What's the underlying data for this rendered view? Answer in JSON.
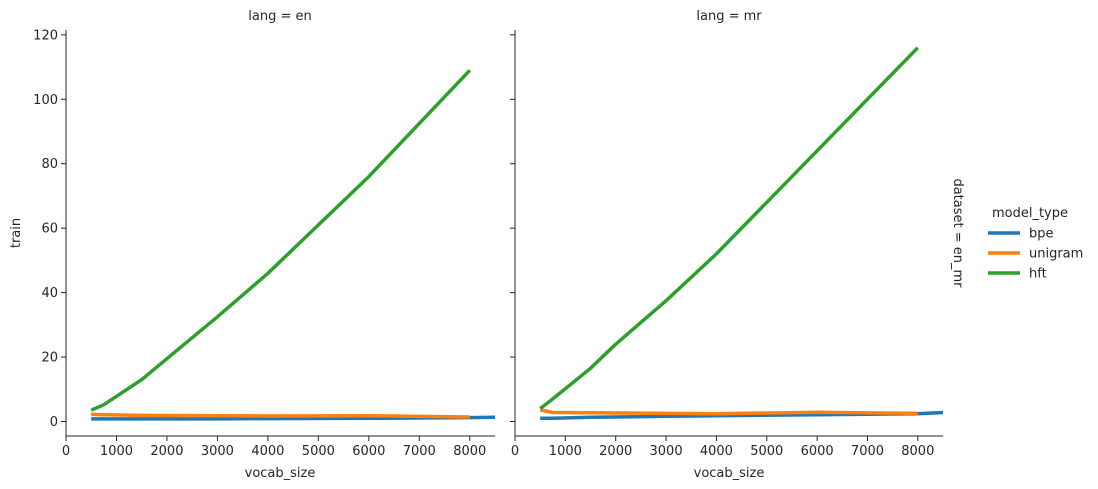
{
  "chart_data": {
    "type": "line",
    "facet_row_label": "dataset = en_mr",
    "legend": {
      "title": "model_type",
      "entries": [
        "bpe",
        "unigram",
        "hft"
      ],
      "placement": "right"
    },
    "colors": {
      "bpe": "#1f77b4",
      "unigram": "#ff7f0e",
      "hft": "#2ca02c"
    },
    "grid": false,
    "xlabel": "vocab_size",
    "ylabel": "train",
    "xlim": [
      0,
      8500
    ],
    "ylim": [
      -4.5,
      121.5
    ],
    "xticks": [
      "0",
      "1000",
      "2000",
      "3000",
      "4000",
      "5000",
      "6000",
      "7000",
      "8000"
    ],
    "yticks": [
      "0",
      "20",
      "40",
      "60",
      "80",
      "100",
      "120"
    ],
    "panels": [
      {
        "title": "lang = en",
        "series": [
          {
            "name": "bpe",
            "x": [
              500,
              750,
              1500,
              3000,
              4000,
              6000,
              8000,
              8500
            ],
            "y": [
              0.8,
              0.8,
              0.8,
              0.8,
              0.9,
              1.0,
              1.2,
              1.3
            ]
          },
          {
            "name": "unigram",
            "x": [
              500,
              750,
              1500,
              3000,
              4000,
              6000,
              8000
            ],
            "y": [
              2.2,
              2.1,
              1.9,
              1.8,
              1.7,
              1.8,
              1.4
            ]
          },
          {
            "name": "hft",
            "x": [
              500,
              750,
              1500,
              2000,
              3000,
              4000,
              6000,
              8000
            ],
            "y": [
              3.5,
              5.2,
              13,
              19.5,
              32.5,
              46,
              76,
              109
            ]
          }
        ]
      },
      {
        "title": "lang = mr",
        "series": [
          {
            "name": "bpe",
            "x": [
              500,
              750,
              1500,
              3000,
              4000,
              6000,
              8000,
              8500
            ],
            "y": [
              1.0,
              1.0,
              1.3,
              1.6,
              1.8,
              2.1,
              2.4,
              2.8
            ]
          },
          {
            "name": "unigram",
            "x": [
              500,
              750,
              1500,
              3000,
              4000,
              6000,
              8000
            ],
            "y": [
              3.6,
              2.8,
              2.7,
              2.5,
              2.4,
              2.9,
              2.5
            ]
          },
          {
            "name": "hft",
            "x": [
              500,
              750,
              1500,
              2000,
              3000,
              4000,
              6000,
              8000
            ],
            "y": [
              4.0,
              7.0,
              16.5,
              24,
              37.5,
              52,
              84,
              116
            ]
          }
        ]
      }
    ]
  }
}
